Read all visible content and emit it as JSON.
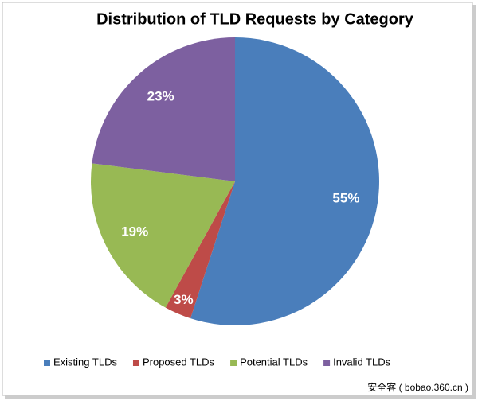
{
  "chart_data": {
    "type": "pie",
    "title": "Distribution  of TLD Requests by Category",
    "categories": [
      "Existing TLDs",
      "Proposed TLDs",
      "Potential TLDs",
      "Invalid TLDs"
    ],
    "values": [
      55,
      3,
      19,
      23
    ],
    "value_labels": [
      "55%",
      "3%",
      "19%",
      "23%"
    ],
    "colors": [
      "#4a7ebb",
      "#be4b48",
      "#98b954",
      "#7d60a0"
    ],
    "legend": "bottom"
  },
  "watermark": "安全客 ( bobao.360.cn )"
}
